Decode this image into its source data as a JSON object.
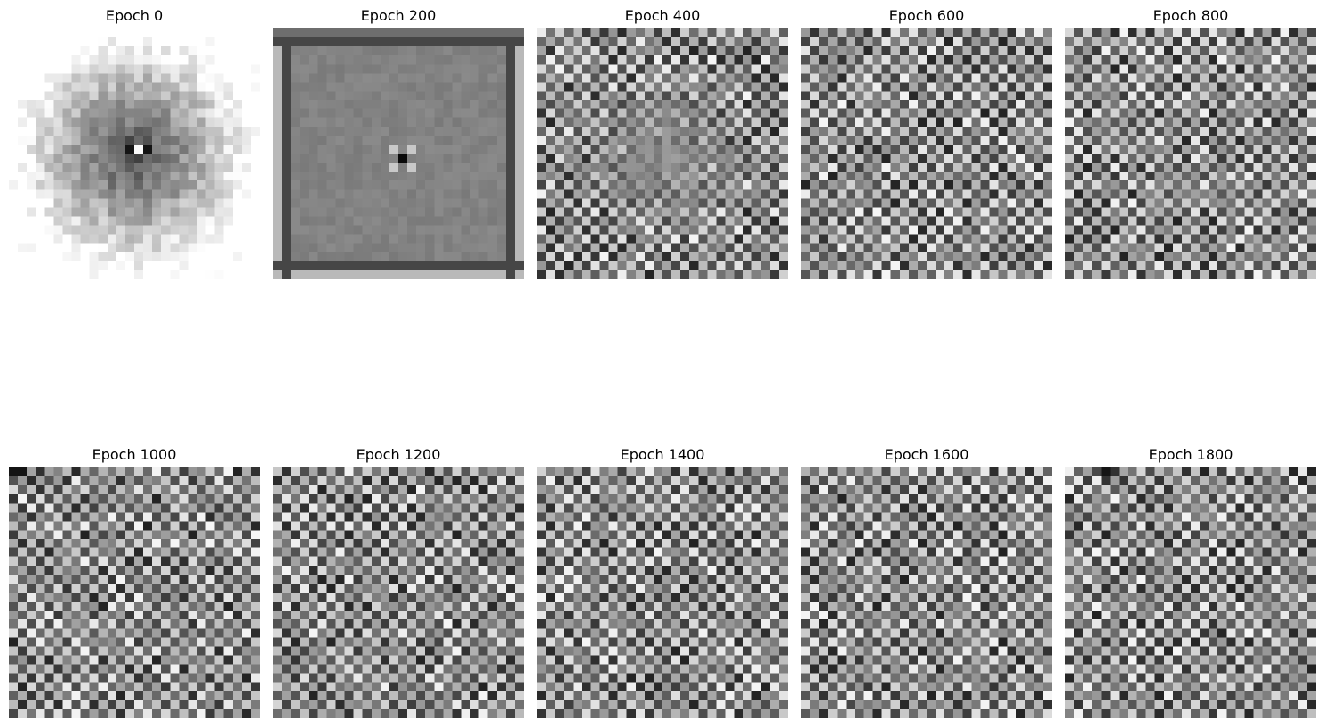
{
  "figure": {
    "panels": [
      {
        "title": "Epoch 0",
        "epoch": 0
      },
      {
        "title": "Epoch 200",
        "epoch": 200
      },
      {
        "title": "Epoch 400",
        "epoch": 400
      },
      {
        "title": "Epoch 600",
        "epoch": 600
      },
      {
        "title": "Epoch 800",
        "epoch": 800
      },
      {
        "title": "Epoch 1000",
        "epoch": 1000
      },
      {
        "title": "Epoch 1200",
        "epoch": 1200
      },
      {
        "title": "Epoch 1400",
        "epoch": 1400
      },
      {
        "title": "Epoch 1600",
        "epoch": 1600
      },
      {
        "title": "Epoch 1800",
        "epoch": 1800
      }
    ],
    "colormap": "gray",
    "grid_cells": 28
  }
}
